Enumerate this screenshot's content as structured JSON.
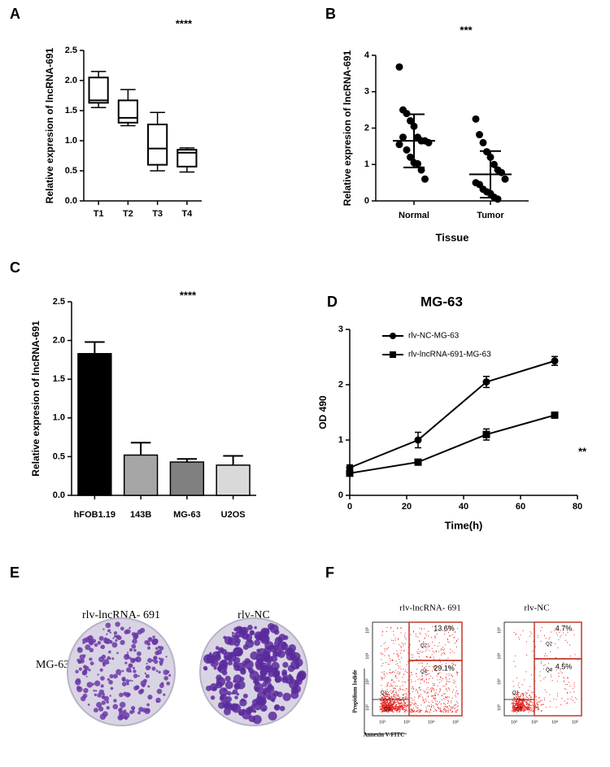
{
  "chart_data": [
    {
      "type": "box",
      "panel": "A",
      "annotation": "****",
      "y_label": "Relative expresion of lncRNA-691",
      "categories": [
        "T1",
        "T2",
        "T3",
        "T4"
      ],
      "min": [
        1.55,
        1.25,
        0.5,
        0.48
      ],
      "q1": [
        1.63,
        1.3,
        0.6,
        0.57
      ],
      "median": [
        1.67,
        1.38,
        0.87,
        0.8
      ],
      "q3": [
        2.05,
        1.67,
        1.27,
        0.85
      ],
      "max": [
        2.15,
        1.85,
        1.47,
        0.88
      ],
      "color": "#000000",
      "ylim": [
        0,
        2.5
      ],
      "yticks": [
        {
          "value": 0,
          "label": "0.0"
        },
        0.5,
        {
          "value": 1,
          "label": "1.0"
        },
        1.5,
        {
          "value": 2,
          "label": "2.0"
        },
        2.5
      ]
    },
    {
      "type": "dot",
      "panel": "B",
      "annotation": "***",
      "y_label": "Relative expresion of lncRNA-691",
      "x_label": "Tissue",
      "categories": [
        "Normal",
        "Tumor"
      ],
      "points": [
        [
          3.68,
          2.5,
          2.4,
          2.2,
          2.05,
          1.75,
          1.65,
          1.65,
          1.6,
          1.55,
          1.75,
          1.4,
          1.2,
          1.05,
          1.02,
          0.85,
          0.6
        ],
        [
          2.25,
          1.82,
          1.6,
          1.35,
          1.2,
          1.0,
          0.85,
          0.78,
          0.6,
          0.5,
          0.45,
          0.32,
          0.25,
          0.2,
          0.1,
          0.05
        ]
      ],
      "mean": [
        1.65,
        0.73
      ],
      "sd": [
        0.73,
        0.64
      ],
      "color": "#000000",
      "ylim": [
        0,
        4
      ],
      "yticks": [
        0,
        1,
        2,
        3,
        4
      ]
    },
    {
      "type": "bar",
      "panel": "C",
      "annotation": "****",
      "y_label": "Relative expresion of lncRNA-691",
      "categories": [
        "hFOB1.19",
        "143B",
        "MG-63",
        "U2OS"
      ],
      "values": [
        1.83,
        0.52,
        0.43,
        0.39
      ],
      "errors": [
        0.15,
        0.16,
        0.04,
        0.12
      ],
      "colors": [
        "#000000",
        "#a6a6a6",
        "#808080",
        "#d9d9d9"
      ],
      "ylim": [
        0,
        2.5
      ],
      "yticks": [
        {
          "value": 0,
          "label": "0.0"
        },
        0.5,
        {
          "value": 1,
          "label": "1.0"
        },
        1.5,
        {
          "value": 2,
          "label": "2.0"
        },
        2.5
      ]
    },
    {
      "type": "line",
      "panel": "D",
      "title": "MG-63",
      "annotation": "**",
      "y_label": "OD 490",
      "x_label": "Time(h)",
      "x": [
        0,
        24,
        48,
        72
      ],
      "xlim": [
        0,
        80
      ],
      "xticks": [
        0,
        20,
        40,
        60,
        80
      ],
      "ylim": [
        0,
        3
      ],
      "yticks": [
        0,
        1,
        2,
        3
      ],
      "series": [
        {
          "name": "rlv-NC-MG-63",
          "marker": "circle",
          "color": "#000000",
          "values": [
            0.5,
            1.0,
            2.05,
            2.43
          ],
          "errors": [
            0.05,
            0.14,
            0.1,
            0.08
          ]
        },
        {
          "name": "rlv-lncRNA-691-MG-63",
          "marker": "square",
          "color": "#000000",
          "values": [
            0.4,
            0.6,
            1.1,
            1.45
          ],
          "errors": [
            0.05,
            0.03,
            0.1,
            0.05
          ]
        }
      ]
    }
  ],
  "images": {
    "E": {
      "panel": "E",
      "row_label": "MG-63",
      "columns": [
        "rlv-lncRNA- 691",
        "rlv-NC"
      ]
    },
    "F": {
      "panel": "F",
      "columns": [
        "rlv-lncRNA- 691",
        "rlv-NC"
      ],
      "plots": [
        {
          "q2": "13.6%",
          "q4": "29.1%"
        },
        {
          "q2": "4.7%",
          "q4": "4.5%"
        }
      ],
      "quadrants": [
        "Q1",
        "Q2",
        "Q3",
        "Q4"
      ],
      "y_label": "Propidium Iodide",
      "x_label": "Annexin V-FITC",
      "ticks": [
        "10²",
        "10³",
        "10⁴",
        "10⁵"
      ]
    }
  }
}
